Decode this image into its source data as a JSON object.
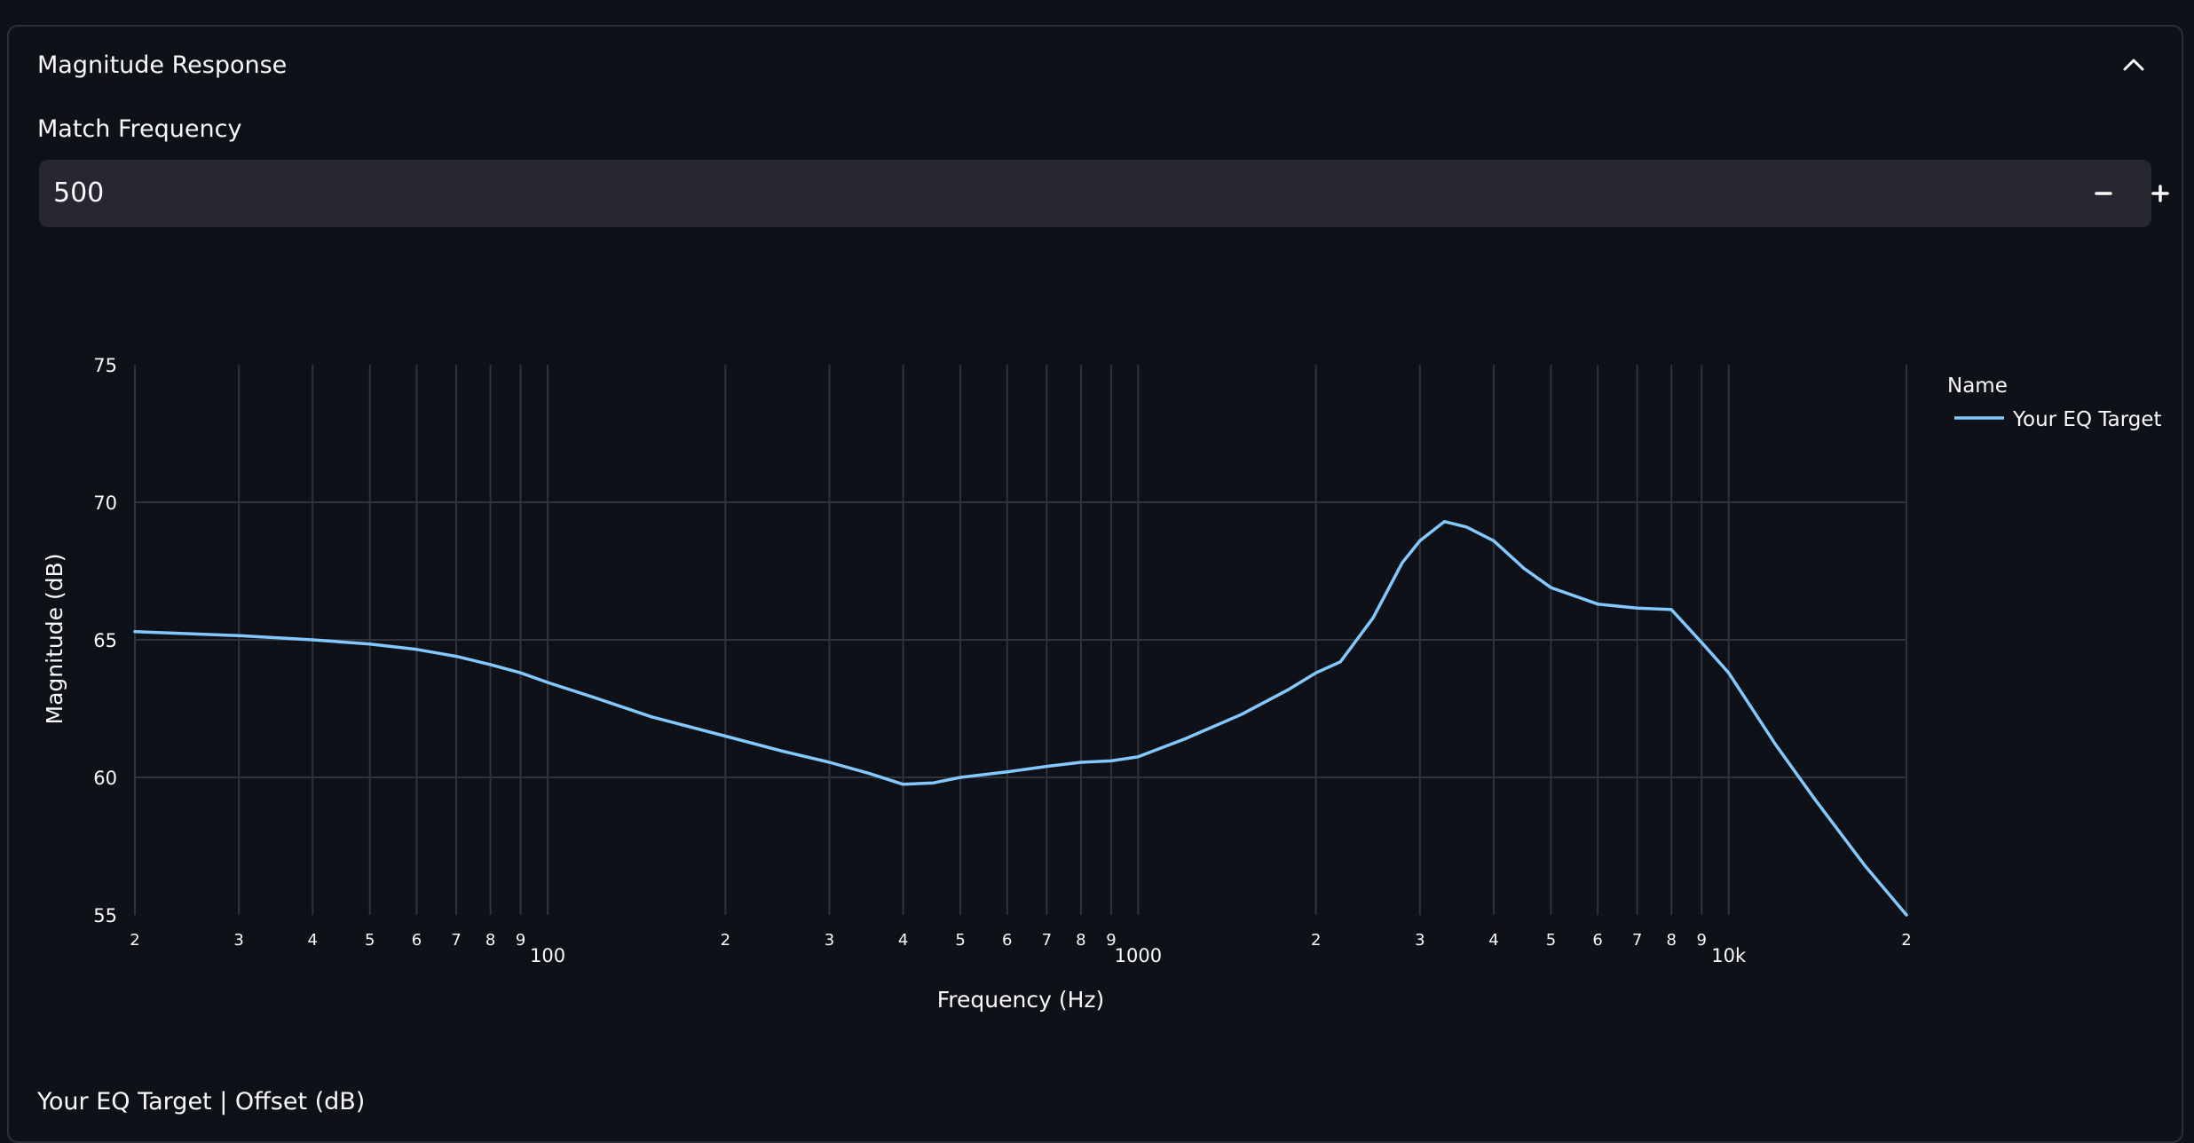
{
  "panel": {
    "title": "Magnitude Response"
  },
  "match_frequency": {
    "label": "Match Frequency",
    "value": "500"
  },
  "bottom_label": "Your EQ Target | Offset (dB)",
  "icons": {
    "collapse": "chevron-up-icon",
    "decrement": "minus-icon",
    "increment": "plus-icon"
  },
  "colors": {
    "background": "#0e1117",
    "line": "#83c9ff",
    "grid": "#31333b",
    "input_bg": "#262730"
  },
  "chart_data": {
    "type": "line",
    "xlabel": "Frequency (Hz)",
    "ylabel": "Magnitude (dB)",
    "x_scale": "log",
    "xlim": [
      20,
      20000
    ],
    "ylim": [
      55,
      75
    ],
    "y_ticks": [
      55,
      60,
      65,
      70,
      75
    ],
    "grid": true,
    "legend_title": "Name",
    "legend_position": "top-right",
    "x_ticks": [
      {
        "value": 20,
        "label": "2"
      },
      {
        "value": 30,
        "label": "3"
      },
      {
        "value": 40,
        "label": "4"
      },
      {
        "value": 50,
        "label": "5"
      },
      {
        "value": 60,
        "label": "6"
      },
      {
        "value": 70,
        "label": "7"
      },
      {
        "value": 80,
        "label": "8"
      },
      {
        "value": 90,
        "label": "9"
      },
      {
        "value": 100,
        "label": "100"
      },
      {
        "value": 200,
        "label": "2"
      },
      {
        "value": 300,
        "label": "3"
      },
      {
        "value": 400,
        "label": "4"
      },
      {
        "value": 500,
        "label": "5"
      },
      {
        "value": 600,
        "label": "6"
      },
      {
        "value": 700,
        "label": "7"
      },
      {
        "value": 800,
        "label": "8"
      },
      {
        "value": 900,
        "label": "9"
      },
      {
        "value": 1000,
        "label": "1000"
      },
      {
        "value": 2000,
        "label": "2"
      },
      {
        "value": 3000,
        "label": "3"
      },
      {
        "value": 4000,
        "label": "4"
      },
      {
        "value": 5000,
        "label": "5"
      },
      {
        "value": 6000,
        "label": "6"
      },
      {
        "value": 7000,
        "label": "7"
      },
      {
        "value": 8000,
        "label": "8"
      },
      {
        "value": 9000,
        "label": "9"
      },
      {
        "value": 10000,
        "label": "10k"
      },
      {
        "value": 20000,
        "label": "2"
      }
    ],
    "series": [
      {
        "name": "Your EQ Target",
        "color": "#83c9ff",
        "x": [
          20,
          30,
          40,
          50,
          60,
          70,
          80,
          90,
          100,
          120,
          150,
          200,
          250,
          300,
          350,
          400,
          450,
          500,
          600,
          700,
          800,
          900,
          1000,
          1200,
          1500,
          1800,
          2000,
          2200,
          2500,
          2800,
          3000,
          3300,
          3600,
          4000,
          4500,
          5000,
          6000,
          7000,
          8000,
          9000,
          10000,
          12000,
          14000,
          17000,
          20000
        ],
        "y": [
          65.3,
          65.15,
          65.0,
          64.85,
          64.65,
          64.4,
          64.1,
          63.8,
          63.45,
          62.9,
          62.2,
          61.5,
          60.95,
          60.55,
          60.15,
          59.75,
          59.8,
          60.0,
          60.2,
          60.4,
          60.55,
          60.6,
          60.75,
          61.4,
          62.3,
          63.2,
          63.8,
          64.2,
          65.8,
          67.8,
          68.6,
          69.3,
          69.1,
          68.6,
          67.6,
          66.9,
          66.3,
          66.15,
          66.1,
          64.9,
          63.8,
          61.2,
          59.2,
          56.8,
          55.0
        ]
      }
    ]
  }
}
